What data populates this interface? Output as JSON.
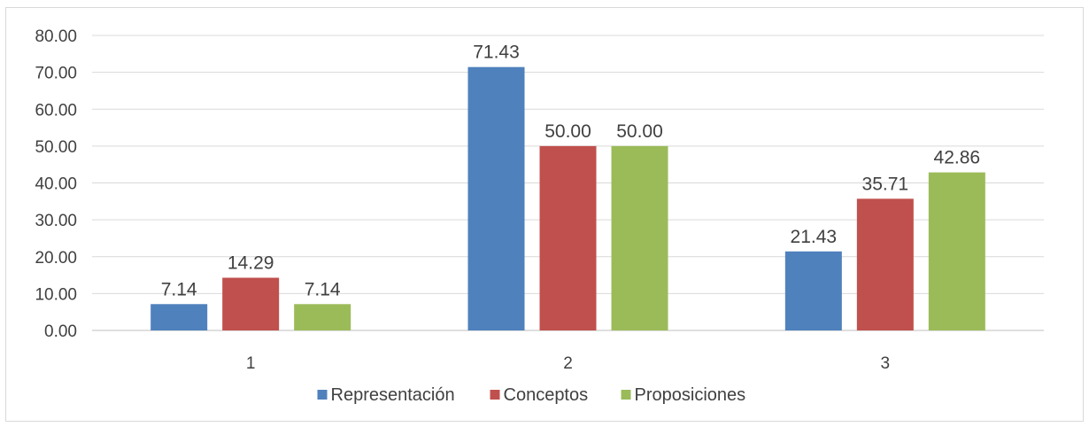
{
  "chart_data": {
    "type": "bar",
    "categories": [
      "1",
      "2",
      "3"
    ],
    "series": [
      {
        "name": "Representación",
        "values": [
          7.14,
          71.43,
          21.43
        ],
        "labels": [
          "7.14",
          "71.43",
          "21.43"
        ],
        "color": "#4f81bd"
      },
      {
        "name": "Conceptos",
        "values": [
          14.29,
          50.0,
          35.71
        ],
        "labels": [
          "14.29",
          "50.00",
          "35.71"
        ],
        "color": "#c0504d"
      },
      {
        "name": "Proposiciones",
        "values": [
          7.14,
          50.0,
          42.86
        ],
        "labels": [
          "7.14",
          "50.00",
          "42.86"
        ],
        "color": "#9bbb59"
      }
    ],
    "ylim": [
      0,
      80
    ],
    "yticks": [
      "0.00",
      "10.00",
      "20.00",
      "30.00",
      "40.00",
      "50.00",
      "60.00",
      "70.00",
      "80.00"
    ],
    "grid": true,
    "legend_position": "bottom",
    "title": "",
    "xlabel": "",
    "ylabel": ""
  }
}
